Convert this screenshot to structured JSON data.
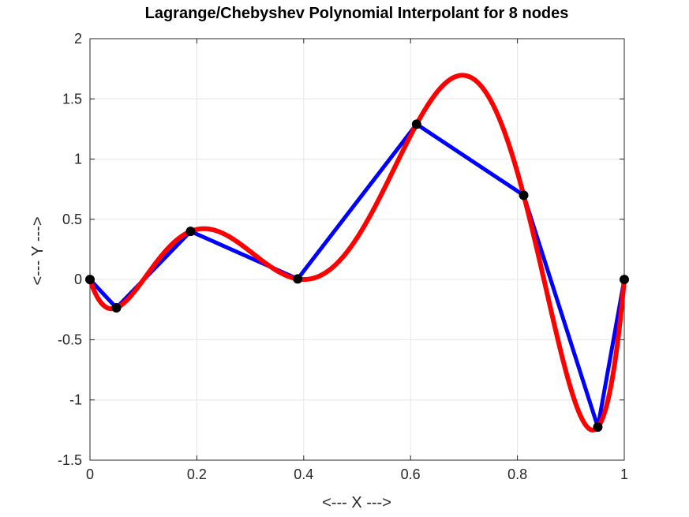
{
  "chart_data": {
    "type": "line",
    "title": "Lagrange/Chebyshev Polynomial Interpolant for 8 nodes",
    "xlabel": "<--- X --->",
    "ylabel": "<--- Y --->",
    "xlim": [
      0,
      1
    ],
    "ylim": [
      -1.5,
      2
    ],
    "xticks": [
      0,
      0.2,
      0.4,
      0.6,
      0.8,
      1
    ],
    "yticks": [
      -1.5,
      -1,
      -0.5,
      0,
      0.5,
      1,
      1.5,
      2
    ],
    "xtick_labels": [
      "0",
      "0.2",
      "0.4",
      "0.6",
      "0.8",
      "1"
    ],
    "ytick_labels": [
      "-1.5",
      "-1",
      "-0.5",
      "0",
      "0.5",
      "1",
      "1.5",
      "2"
    ],
    "grid": true,
    "series": [
      {
        "color": "#0000ff",
        "style": "piecewise-linear",
        "x": [
          0,
          0.0495,
          0.1883,
          0.3887,
          0.6113,
          0.8117,
          0.9505,
          1
        ],
        "y": [
          0,
          -0.235,
          0.4,
          0.005,
          1.29,
          0.7,
          -1.225,
          0
        ]
      },
      {
        "color": "#ff0000",
        "style": "interpolating-polynomial",
        "x": [
          0,
          0.0495,
          0.1883,
          0.3887,
          0.6113,
          0.8117,
          0.9505,
          1
        ],
        "y": [
          0,
          -0.235,
          0.4,
          0.005,
          1.29,
          0.7,
          -1.225,
          0
        ]
      }
    ],
    "markers": {
      "color": "#000000",
      "x": [
        0,
        0.0495,
        0.1883,
        0.3887,
        0.6113,
        0.8117,
        0.9505,
        1
      ],
      "y": [
        0,
        -0.235,
        0.4,
        0.005,
        1.29,
        0.7,
        -1.225,
        0
      ]
    }
  }
}
